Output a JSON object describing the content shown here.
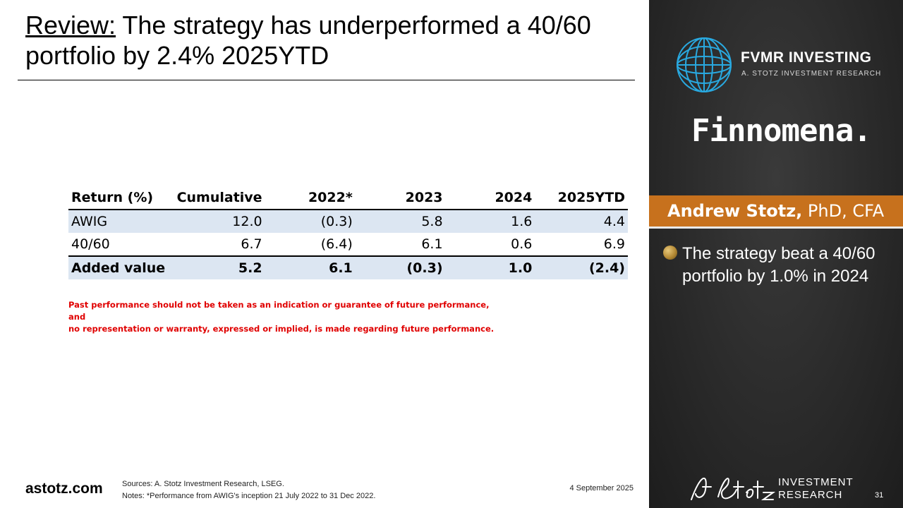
{
  "slide": {
    "title_lead": "Review:",
    "title_rest": " The strategy has underperformed a 40/60 portfolio by 2.4% 2025YTD"
  },
  "table": {
    "headers": [
      "Return (%)",
      "Cumulative",
      "2022*",
      "2023",
      "2024",
      "2025YTD"
    ],
    "rows": [
      [
        "AWIG",
        "12.0",
        "(0.3)",
        "5.8",
        "1.6",
        "4.4"
      ],
      [
        "40/60",
        "6.7",
        "(6.4)",
        "6.1",
        "0.6",
        "6.9"
      ],
      [
        "Added value",
        "5.2",
        "6.1",
        "(0.3)",
        "1.0",
        "(2.4)"
      ]
    ]
  },
  "disclaimer": {
    "line1": "Past performance should not be taken as an indication or guarantee of future performance, and",
    "line2": "no representation or warranty, expressed or implied, is made regarding future performance."
  },
  "footer": {
    "site": "astotz.com",
    "sources": "Sources: A. Stotz Investment Research, LSEG.",
    "notes": "Notes: *Performance from AWIG's inception 21 July 2022 to 31 Dec 2022.",
    "date": "4 September 2025",
    "page": "31"
  },
  "panel": {
    "fvmr_title": "FVMR INVESTING",
    "fvmr_sub": "A. STOTZ INVESTMENT RESEARCH",
    "partner_logo": "Finnomena.",
    "presenter_name": "Andrew Stotz,",
    "presenter_credentials": " PhD, CFA",
    "bullet": "The strategy beat a 40/60 portfolio by 1.0% in 2024",
    "brand_line1": "INVESTMENT",
    "brand_line2": "RESEARCH",
    "signature": "A. Stotz"
  },
  "colors": {
    "panel_bg": "#2a2a2a",
    "name_bar": "#c7711d",
    "table_shade": "#dce6f2",
    "disclaimer": "#e00000",
    "globe": "#29a9e0"
  },
  "icons": {
    "globe": "globe-logo-icon",
    "bullet": "gold-bullet-icon"
  }
}
